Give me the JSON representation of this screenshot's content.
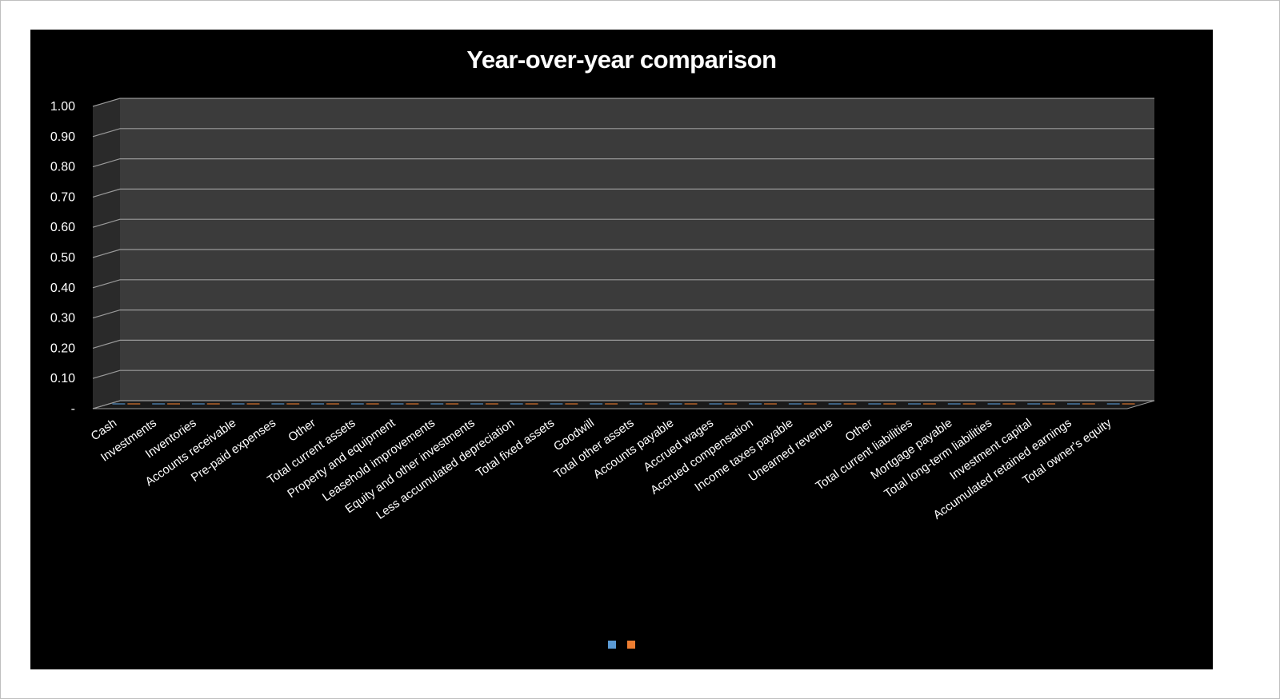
{
  "chart_data": {
    "type": "bar",
    "title": "Year-over-year comparison",
    "xlabel": "",
    "ylabel": "",
    "ylim": [
      0,
      1.0
    ],
    "yticks": [
      "-",
      "0.10",
      "0.20",
      "0.30",
      "0.40",
      "0.50",
      "0.60",
      "0.70",
      "0.80",
      "0.90",
      "1.00"
    ],
    "categories": [
      "Cash",
      "Investments",
      "Inventories",
      "Accounts receivable",
      "Pre-paid expenses",
      "Other",
      "Total current assets",
      "Property and equipment",
      "Leasehold improvements",
      "Equity and other investments",
      "Less accumulated depreciation",
      "Total fixed assets",
      "Goodwill",
      "Total other assets",
      "Accounts payable",
      "Accrued wages",
      "Accrued compensation",
      "Income taxes payable",
      "Unearned revenue",
      "Other",
      "Total current liabilities",
      "Mortgage payable",
      "Total long-term liabilities",
      "Investment capital",
      "Accumulated retained earnings",
      "Total owner's equity"
    ],
    "series": [
      {
        "color": "#5b9bd5",
        "values": [
          0,
          0,
          0,
          0,
          0,
          0,
          0,
          0,
          0,
          0,
          0,
          0,
          0,
          0,
          0,
          0,
          0,
          0,
          0,
          0,
          0,
          0,
          0,
          0,
          0,
          0
        ]
      },
      {
        "color": "#ed7d31",
        "values": [
          0,
          0,
          0,
          0,
          0,
          0,
          0,
          0,
          0,
          0,
          0,
          0,
          0,
          0,
          0,
          0,
          0,
          0,
          0,
          0,
          0,
          0,
          0,
          0,
          0,
          0
        ]
      }
    ],
    "grid": true,
    "legend_position": "bottom",
    "style": "3d-clustered-column"
  },
  "colors": {
    "background": "#000000",
    "back_wall": "#3b3b3b",
    "side_wall": "#2a2a2a",
    "gridline": "#9a9a9a",
    "text": "#ffffff"
  }
}
